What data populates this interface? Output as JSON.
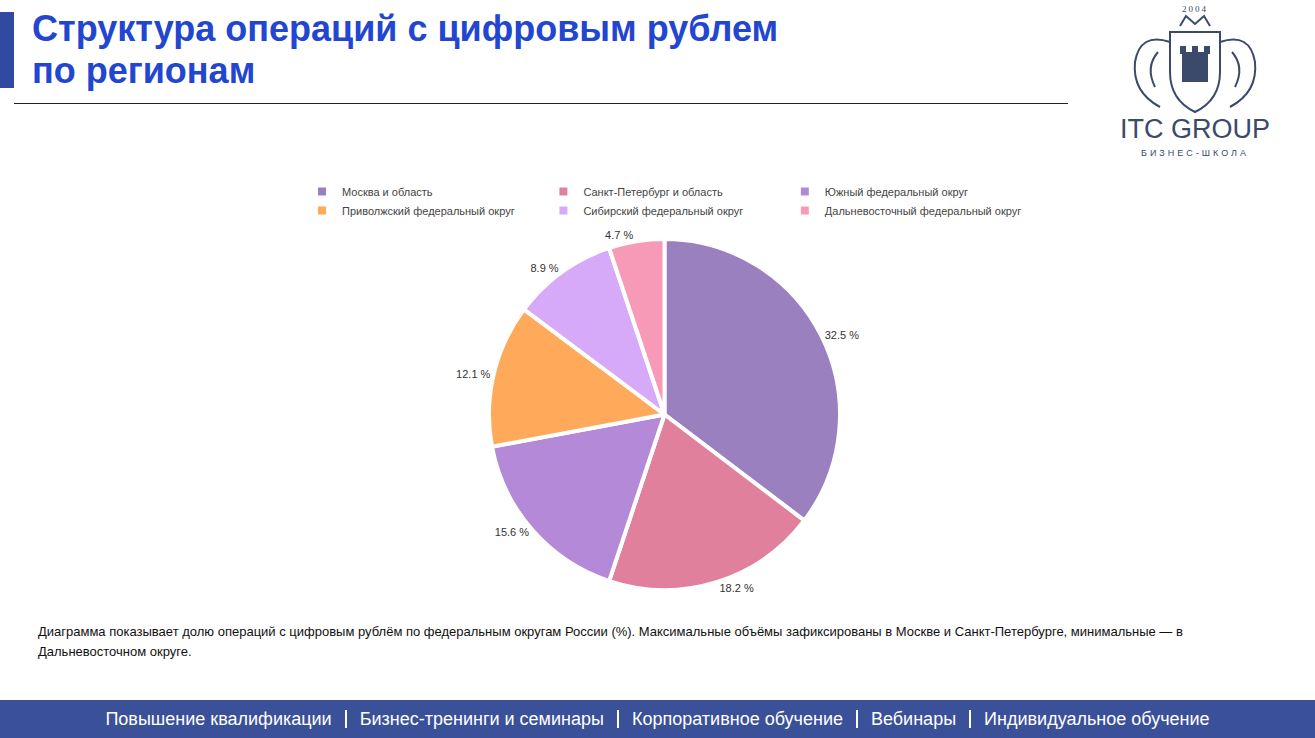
{
  "page": {
    "title_lines": [
      "Структура операций с цифровым рублем",
      "по регионам"
    ],
    "logo": {
      "year": "2004",
      "name": "ITC GROUP",
      "subtitle": "БИЗНЕС-ШКОЛА"
    },
    "caption": "Диаграмма показывает долю операций с цифровым рублём по федеральным округам России (%). Максимальные объёмы зафиксированы в Москве и Санкт-Петербурге, минимальные — в Дальневосточном округе.",
    "footer": [
      "Повышение квалификации",
      "Бизнес-тренинги и семинары",
      "Корпоративное обучение",
      "Вебинары",
      "Индивидуальное обучение"
    ]
  },
  "chart_data": {
    "type": "pie",
    "categories": [
      "Москва и область",
      "Санкт-Петербург и область",
      "Южный федеральный округ",
      "Приволжский федеральный округ",
      "Сибирский федеральный округ",
      "Дальневосточный федеральный округ"
    ],
    "values": [
      32.5,
      18.2,
      15.6,
      12.1,
      8.9,
      4.7
    ],
    "value_labels": [
      "32.5 %",
      "18.2 %",
      "15.6 %",
      "12.1 %",
      "8.9 %",
      "4.7 %"
    ],
    "colors": [
      "#9b80c0",
      "#e0809c",
      "#b48ad8",
      "#ffa95a",
      "#d6aaf8",
      "#f79ab8"
    ],
    "legend": "top",
    "data_labels": true
  }
}
